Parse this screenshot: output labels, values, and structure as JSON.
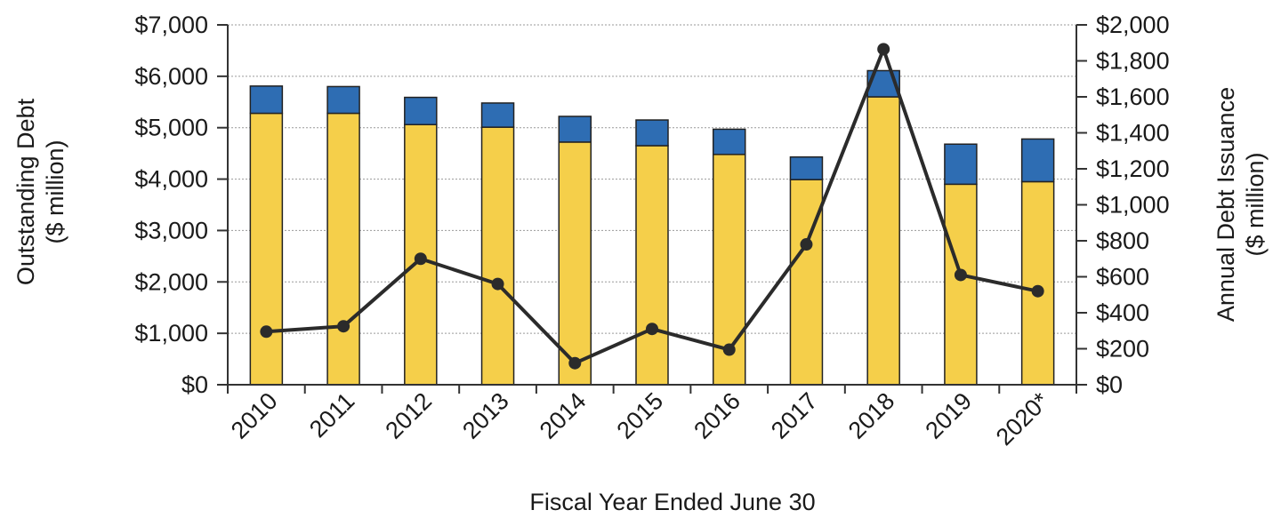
{
  "chart_data": {
    "type": "bar",
    "stacked": true,
    "categories": [
      "2010",
      "2011",
      "2012",
      "2013",
      "2014",
      "2015",
      "2016",
      "2017",
      "2018",
      "2019",
      "2020*"
    ],
    "xlabel": "Fiscal Year Ended June 30",
    "ylabel_left": [
      "Outstanding Debt",
      "($ million)"
    ],
    "ylabel_right": [
      "Annual Debt Issuance",
      "($ million)"
    ],
    "ylim_left": [
      0,
      7000
    ],
    "ylim_right": [
      0,
      2000
    ],
    "left_ticks": [
      "$0",
      "$1,000",
      "$2,000",
      "$3,000",
      "$4,000",
      "$5,000",
      "$6,000",
      "$7,000"
    ],
    "right_ticks": [
      "$0",
      "$200",
      "$400",
      "$600",
      "$800",
      "$1,000",
      "$1,200",
      "$1,400",
      "$1,600",
      "$1,800",
      "$2,000"
    ],
    "series": [
      {
        "axis": "left",
        "kind": "bar",
        "color": "#f5cf4a",
        "values": [
          5280,
          5280,
          5060,
          5010,
          4720,
          4650,
          4480,
          3990,
          5600,
          3900,
          3950
        ]
      },
      {
        "axis": "left",
        "kind": "bar",
        "color": "#2e6db3",
        "values": [
          530,
          520,
          530,
          470,
          500,
          500,
          490,
          440,
          510,
          780,
          830
        ]
      },
      {
        "axis": "right",
        "kind": "line",
        "color": "#2b2b2b",
        "values": [
          295,
          325,
          700,
          560,
          120,
          310,
          195,
          780,
          1865,
          610,
          520
        ]
      }
    ],
    "grid": true
  }
}
